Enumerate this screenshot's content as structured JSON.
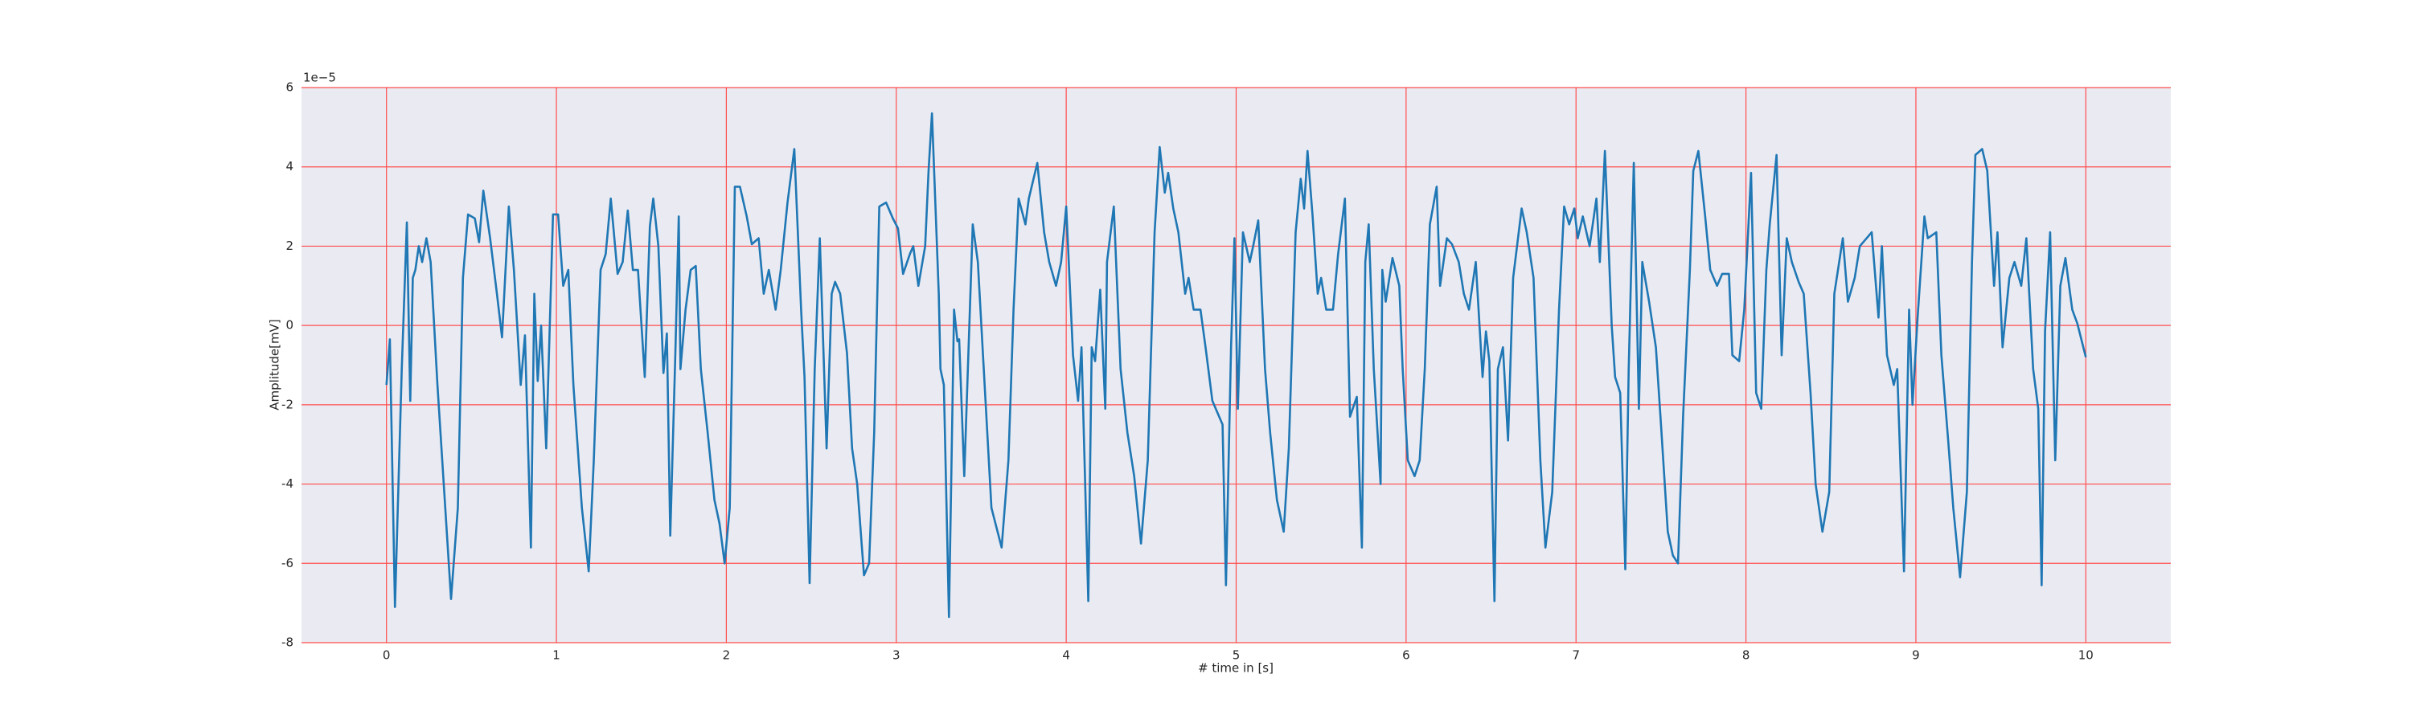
{
  "chart_data": {
    "type": "line",
    "xlabel": "# time in [s]",
    "ylabel": "Amplitude[mV]",
    "y_offset_label": "1e−5",
    "xlim": [
      -0.5,
      10.5
    ],
    "xticks": [
      0,
      1,
      2,
      3,
      4,
      5,
      6,
      7,
      8,
      9,
      10
    ],
    "ylim": [
      -8,
      6
    ],
    "yticks": [
      -8,
      -6,
      -4,
      -2,
      0,
      2,
      4,
      6
    ],
    "grid": true,
    "grid_color": "#ff4d4d",
    "background": "#eaeaf2",
    "x": [
      0,
      0.02,
      0.05,
      0.09,
      0.12,
      0.14,
      0.155,
      0.17,
      0.19,
      0.21,
      0.235,
      0.26,
      0.3,
      0.34,
      0.38,
      0.42,
      0.45,
      0.48,
      0.52,
      0.545,
      0.57,
      0.61,
      0.65,
      0.68,
      0.72,
      0.75,
      0.79,
      0.815,
      0.85,
      0.87,
      0.89,
      0.91,
      0.94,
      0.98,
      1.01,
      1.04,
      1.07,
      1.1,
      1.15,
      1.19,
      1.22,
      1.26,
      1.29,
      1.32,
      1.36,
      1.39,
      1.42,
      1.45,
      1.48,
      1.52,
      1.55,
      1.57,
      1.6,
      1.63,
      1.65,
      1.67,
      1.7,
      1.72,
      1.73,
      1.76,
      1.79,
      1.82,
      1.85,
      1.89,
      1.93,
      1.96,
      1.99,
      2.02,
      2.05,
      2.08,
      2.12,
      2.15,
      2.19,
      2.22,
      2.25,
      2.29,
      2.32,
      2.36,
      2.4,
      2.44,
      2.46,
      2.49,
      2.52,
      2.55,
      2.59,
      2.62,
      2.64,
      2.67,
      2.71,
      2.74,
      2.77,
      2.81,
      2.84,
      2.87,
      2.9,
      2.94,
      2.98,
      3.01,
      3.04,
      3.08,
      3.1,
      3.13,
      3.17,
      3.19,
      3.21,
      3.25,
      3.26,
      3.28,
      3.31,
      3.34,
      3.36,
      3.37,
      3.4,
      3.45,
      3.48,
      3.52,
      3.56,
      3.62,
      3.66,
      3.69,
      3.72,
      3.76,
      3.78,
      3.83,
      3.87,
      3.9,
      3.94,
      3.97,
      4.0,
      4.04,
      4.07,
      4.09,
      4.13,
      4.15,
      4.17,
      4.2,
      4.23,
      4.24,
      4.28,
      4.32,
      4.36,
      4.4,
      4.44,
      4.48,
      4.52,
      4.55,
      4.58,
      4.6,
      4.63,
      4.66,
      4.7,
      4.72,
      4.75,
      4.79,
      4.82,
      4.86,
      4.9,
      4.92,
      4.94,
      4.97,
      4.99,
      5.01,
      5.04,
      5.08,
      5.1,
      5.13,
      5.17,
      5.2,
      5.24,
      5.28,
      5.31,
      5.35,
      5.38,
      5.4,
      5.42,
      5.45,
      5.48,
      5.5,
      5.53,
      5.57,
      5.6,
      5.64,
      5.67,
      5.71,
      5.74,
      5.76,
      5.78,
      5.81,
      5.85,
      5.86,
      5.88,
      5.92,
      5.96,
      5.98,
      6.01,
      6.05,
      6.08,
      6.11,
      6.14,
      6.18,
      6.2,
      6.24,
      6.27,
      6.31,
      6.34,
      6.37,
      6.41,
      6.45,
      6.47,
      6.49,
      6.52,
      6.54,
      6.57,
      6.6,
      6.63,
      6.68,
      6.71,
      6.75,
      6.79,
      6.82,
      6.86,
      6.9,
      6.93,
      6.96,
      6.99,
      7.01,
      7.04,
      7.08,
      7.12,
      7.14,
      7.17,
      7.21,
      7.23,
      7.26,
      7.29,
      7.31,
      7.34,
      7.37,
      7.39,
      7.43,
      7.47,
      7.5,
      7.54,
      7.57,
      7.6,
      7.63,
      7.67,
      7.69,
      7.72,
      7.76,
      7.79,
      7.83,
      7.86,
      7.9,
      7.92,
      7.96,
      7.99,
      8.03,
      8.06,
      8.09,
      8.12,
      8.14,
      8.18,
      8.21,
      8.24,
      8.27,
      8.31,
      8.34,
      8.38,
      8.41,
      8.45,
      8.49,
      8.52,
      8.57,
      8.6,
      8.64,
      8.67,
      8.71,
      8.74,
      8.78,
      8.8,
      8.83,
      8.87,
      8.89,
      8.93,
      8.96,
      8.98,
      9.01,
      9.05,
      9.07,
      9.12,
      9.15,
      9.19,
      9.22,
      9.26,
      9.3,
      9.33,
      9.35,
      9.39,
      9.42,
      9.46,
      9.48,
      9.51,
      9.55,
      9.58,
      9.62,
      9.65,
      9.69,
      9.72,
      9.74,
      9.76,
      9.79,
      9.82,
      9.85,
      9.88,
      9.92,
      9.95,
      10.0
    ],
    "series": [
      {
        "color": "#1f77b4",
        "values": [
          -1.5,
          -0.35,
          -7.1,
          -1.1,
          2.6,
          -1.9,
          1.2,
          1.4,
          2.0,
          1.6,
          2.2,
          1.6,
          -1.5,
          -4.2,
          -6.9,
          -4.6,
          1.2,
          2.8,
          2.7,
          2.1,
          3.4,
          2.2,
          0.8,
          -0.3,
          3.0,
          1.4,
          -1.5,
          -0.25,
          -5.6,
          0.8,
          -1.4,
          0,
          -3.1,
          2.8,
          2.8,
          1.0,
          1.4,
          -1.5,
          -4.6,
          -6.2,
          -3.4,
          1.4,
          1.8,
          3.2,
          1.3,
          1.6,
          2.9,
          1.4,
          1.4,
          -1.3,
          2.5,
          3.2,
          2.0,
          -1.2,
          -0.2,
          -5.3,
          -0.7,
          2.75,
          -1.1,
          0.4,
          1.4,
          1.5,
          -1.1,
          -2.7,
          -4.4,
          -5.0,
          -6.0,
          -4.6,
          3.5,
          3.5,
          2.75,
          2.05,
          2.2,
          0.8,
          1.4,
          0.4,
          1.4,
          3.1,
          4.45,
          0.4,
          -1.3,
          -6.5,
          -1.1,
          2.2,
          -3.1,
          0.8,
          1.1,
          0.8,
          -0.7,
          -3.1,
          -4.0,
          -6.3,
          -6.0,
          -2.7,
          3.0,
          3.1,
          2.7,
          2.45,
          1.3,
          1.8,
          2.0,
          1.0,
          2.0,
          3.9,
          5.35,
          0.8,
          -1.1,
          -1.5,
          -7.35,
          0.4,
          -0.4,
          -0.35,
          -3.8,
          2.55,
          1.6,
          -1.5,
          -4.6,
          -5.6,
          -3.4,
          0.4,
          3.2,
          2.55,
          3.2,
          4.1,
          2.35,
          1.6,
          1.0,
          1.6,
          3.0,
          -0.75,
          -1.9,
          -0.55,
          -6.95,
          -0.55,
          -0.9,
          0.9,
          -2.1,
          1.6,
          3.0,
          -1.1,
          -2.7,
          -3.8,
          -5.5,
          -3.4,
          2.35,
          4.5,
          3.35,
          3.85,
          2.95,
          2.35,
          0.8,
          1.2,
          0.4,
          0.4,
          -0.55,
          -1.9,
          -2.3,
          -2.5,
          -6.55,
          -0.55,
          2.2,
          -2.1,
          2.35,
          1.6,
          2.0,
          2.65,
          -1.1,
          -2.7,
          -4.4,
          -5.2,
          -3.1,
          2.35,
          3.7,
          2.95,
          4.4,
          2.75,
          0.8,
          1.2,
          0.4,
          0.4,
          1.8,
          3.2,
          -2.3,
          -1.8,
          -5.6,
          1.6,
          2.55,
          -1.1,
          -4.0,
          1.4,
          0.6,
          1.7,
          1.0,
          -1.1,
          -3.4,
          -3.8,
          -3.4,
          -1.1,
          2.55,
          3.5,
          1.0,
          2.2,
          2.05,
          1.6,
          0.8,
          0.4,
          1.6,
          -1.3,
          -0.15,
          -0.9,
          -6.95,
          -1.1,
          -0.55,
          -2.9,
          1.2,
          2.95,
          2.35,
          1.2,
          -3.4,
          -5.6,
          -4.2,
          0.4,
          3.0,
          2.55,
          2.95,
          2.2,
          2.75,
          2.0,
          3.2,
          1.6,
          4.4,
          0,
          -1.3,
          -1.7,
          -6.15,
          -1.1,
          4.1,
          -2.1,
          1.6,
          0.6,
          -0.55,
          -2.5,
          -5.2,
          -5.8,
          -6.0,
          -2.3,
          1.4,
          3.9,
          4.4,
          2.75,
          1.4,
          1.0,
          1.3,
          1.3,
          -0.75,
          -0.9,
          0.4,
          3.85,
          -1.7,
          -2.1,
          1.4,
          2.55,
          4.3,
          -0.75,
          2.2,
          1.6,
          1.1,
          0.8,
          -1.7,
          -4.0,
          -5.2,
          -4.2,
          0.8,
          2.2,
          0.6,
          1.2,
          2.0,
          2.2,
          2.35,
          0.2,
          2.0,
          -0.75,
          -1.5,
          -1.1,
          -6.2,
          0.4,
          -2.0,
          0.2,
          2.75,
          2.2,
          2.35,
          -0.75,
          -2.9,
          -4.6,
          -6.35,
          -4.2,
          1.6,
          4.3,
          4.45,
          3.9,
          1.0,
          2.35,
          -0.55,
          1.2,
          1.6,
          1.0,
          2.2,
          -1.1,
          -2.1,
          -6.55,
          -0.15,
          2.35,
          -3.4,
          1.0,
          1.7,
          0.4,
          0.05,
          -0.8
        ]
      }
    ]
  }
}
